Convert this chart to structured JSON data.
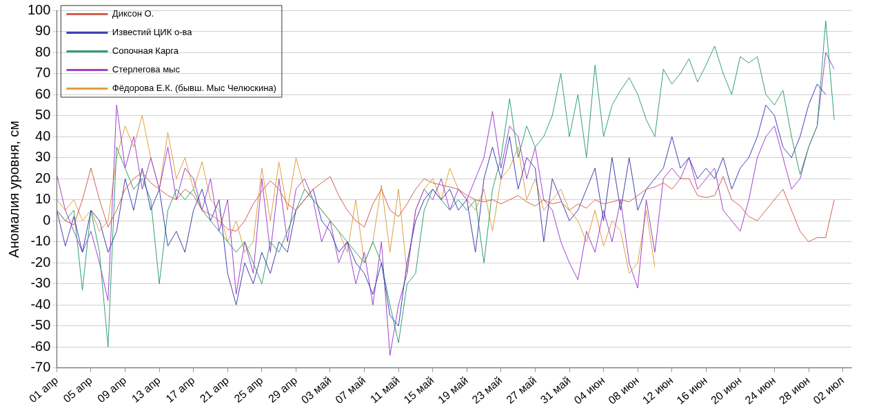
{
  "chart_data": {
    "type": "line",
    "ylabel": "Аномалия уровня, см",
    "x": [
      "--04-01",
      "--04-02",
      "--04-03",
      "--04-04",
      "--04-05",
      "--04-06",
      "--04-07",
      "--04-08",
      "--04-09",
      "--04-10",
      "--04-11",
      "--04-12",
      "--04-13",
      "--04-14",
      "--04-15",
      "--04-16",
      "--04-17",
      "--04-18",
      "--04-19",
      "--04-20",
      "--04-21",
      "--04-22",
      "--04-23",
      "--04-24",
      "--04-25",
      "--04-26",
      "--04-27",
      "--04-28",
      "--04-29",
      "--04-30",
      "--05-01",
      "--05-02",
      "--05-03",
      "--05-04",
      "--05-05",
      "--05-06",
      "--05-07",
      "--05-08",
      "--05-09",
      "--05-10",
      "--05-11",
      "--05-12",
      "--05-13",
      "--05-14",
      "--05-15",
      "--05-16",
      "--05-17",
      "--05-18",
      "--05-19",
      "--05-20",
      "--05-21",
      "--05-22",
      "--05-23",
      "--05-24",
      "--05-25",
      "--05-26",
      "--05-27",
      "--05-28",
      "--05-29",
      "--05-30",
      "--05-31",
      "--06-01",
      "--06-02",
      "--06-03",
      "--06-04",
      "--06-05",
      "--06-06",
      "--06-07",
      "--06-08",
      "--06-09",
      "--06-10",
      "--06-11",
      "--06-12",
      "--06-13",
      "--06-14",
      "--06-15",
      "--06-16",
      "--06-17",
      "--06-18",
      "--06-19",
      "--06-20",
      "--06-21",
      "--06-22",
      "--06-23",
      "--06-24",
      "--06-25",
      "--06-26",
      "--06-27",
      "--06-28",
      "--06-29",
      "--06-30",
      "--07-01"
    ],
    "series": [
      {
        "name": "Диксон О.",
        "color": "#d06050",
        "values": [
          5,
          0,
          -2,
          10,
          25,
          10,
          -3,
          5,
          15,
          20,
          23,
          18,
          15,
          12,
          10,
          15,
          12,
          5,
          3,
          0,
          -4,
          -5,
          0,
          8,
          14,
          19,
          15,
          8,
          5,
          10,
          15,
          18,
          21,
          12,
          5,
          0,
          -3,
          8,
          15,
          5,
          2,
          8,
          15,
          20,
          18,
          17,
          16,
          15,
          12,
          10,
          9,
          10,
          8,
          10,
          12,
          9,
          7,
          10,
          8,
          9,
          5,
          8,
          6,
          10,
          8,
          9,
          10,
          9,
          12,
          15,
          16,
          18,
          15,
          20,
          20,
          12,
          11,
          12,
          21,
          10,
          7,
          2,
          0,
          5,
          10,
          15,
          5,
          -5,
          -10,
          -8,
          -8,
          10
        ]
      },
      {
        "name": "Известий ЦИК о-ва",
        "color": "#4040b0",
        "values": [
          5,
          -12,
          2,
          -15,
          5,
          0,
          -15,
          -5,
          20,
          5,
          25,
          5,
          15,
          -12,
          -5,
          -15,
          5,
          15,
          0,
          10,
          -25,
          -40,
          -20,
          -30,
          -15,
          -25,
          -10,
          -15,
          5,
          10,
          15,
          0,
          -5,
          -15,
          -10,
          -20,
          -25,
          -35,
          -20,
          -45,
          -50,
          -20,
          0,
          10,
          15,
          10,
          15,
          5,
          10,
          -15,
          20,
          35,
          20,
          40,
          15,
          30,
          25,
          -10,
          20,
          10,
          0,
          5,
          15,
          25,
          0,
          30,
          5,
          30,
          5,
          15,
          20,
          25,
          40,
          25,
          30,
          20,
          25,
          20,
          30,
          15,
          25,
          30,
          40,
          55,
          50,
          35,
          30,
          40,
          55,
          65,
          60,
          null
        ]
      },
      {
        "name": "Сопочная Карга",
        "color": "#30a070",
        "values": [
          5,
          0,
          5,
          -33,
          5,
          -15,
          -60,
          35,
          25,
          15,
          20,
          10,
          -30,
          5,
          15,
          10,
          15,
          5,
          0,
          -5,
          -10,
          -15,
          -10,
          -20,
          -30,
          -10,
          -15,
          -5,
          5,
          15,
          10,
          5,
          0,
          -5,
          -10,
          -15,
          -20,
          -10,
          -20,
          -40,
          -58,
          -30,
          -25,
          5,
          15,
          10,
          5,
          10,
          5,
          10,
          -20,
          15,
          30,
          58,
          30,
          45,
          35,
          40,
          50,
          70,
          40,
          60,
          30,
          74,
          40,
          55,
          62,
          68,
          60,
          48,
          40,
          72,
          65,
          70,
          77,
          66,
          74,
          83,
          70,
          60,
          78,
          75,
          78,
          60,
          55,
          62,
          40,
          22,
          35,
          45,
          95,
          48
        ]
      },
      {
        "name": "Стерлегова мыс",
        "color": "#a040d0",
        "values": [
          22,
          5,
          -5,
          -15,
          -5,
          -20,
          -38,
          55,
          25,
          40,
          15,
          30,
          15,
          35,
          10,
          25,
          20,
          5,
          20,
          -5,
          10,
          -35,
          -10,
          -25,
          20,
          -15,
          20,
          -10,
          15,
          20,
          10,
          -10,
          0,
          -20,
          -10,
          -30,
          -15,
          -40,
          -10,
          -64,
          -40,
          -25,
          5,
          15,
          10,
          20,
          5,
          15,
          10,
          20,
          30,
          52,
          25,
          45,
          40,
          20,
          35,
          10,
          5,
          -10,
          -20,
          -28,
          -5,
          -15,
          5,
          -10,
          10,
          -20,
          -32,
          10,
          -15,
          20,
          25,
          20,
          30,
          15,
          20,
          25,
          5,
          0,
          -5,
          10,
          30,
          40,
          45,
          30,
          15,
          20,
          35,
          45,
          80,
          72
        ]
      },
      {
        "name": "Фёдорова Е.К. (бывш. Мыс Челюскина)",
        "color": "#e0a040",
        "values": [
          10,
          5,
          10,
          0,
          5,
          -5,
          0,
          30,
          45,
          35,
          50,
          30,
          15,
          42,
          20,
          30,
          15,
          28,
          10,
          5,
          -10,
          0,
          -15,
          -10,
          25,
          0,
          28,
          5,
          30,
          15,
          10,
          5,
          0,
          -5,
          -15,
          10,
          -20,
          -10,
          17,
          -15,
          15,
          -25,
          5,
          15,
          20,
          10,
          25,
          15,
          10,
          5,
          15,
          -5,
          20,
          25,
          35,
          10,
          20,
          5,
          10,
          15,
          5,
          0,
          -10,
          5,
          -12,
          0,
          -5,
          -25,
          -20,
          5,
          -22,
          null,
          null,
          null,
          null,
          null,
          null,
          null,
          null,
          null,
          null,
          null,
          null,
          null,
          null,
          null,
          null,
          null,
          null,
          null,
          null,
          null
        ]
      }
    ],
    "xlim": [
      "--04-01",
      "--07-03"
    ],
    "xticks": [
      {
        "value": "--04-01",
        "label": "01 апр"
      },
      {
        "value": "--04-05",
        "label": "05 апр"
      },
      {
        "value": "--04-09",
        "label": "09 апр"
      },
      {
        "value": "--04-13",
        "label": "13 апр"
      },
      {
        "value": "--04-17",
        "label": "17 апр"
      },
      {
        "value": "--04-21",
        "label": "21 апр"
      },
      {
        "value": "--04-25",
        "label": "25 апр"
      },
      {
        "value": "--04-29",
        "label": "29 апр"
      },
      {
        "value": "--05-03",
        "label": "03 май"
      },
      {
        "value": "--05-07",
        "label": "07 май"
      },
      {
        "value": "--05-11",
        "label": "11 май"
      },
      {
        "value": "--05-15",
        "label": "15 май"
      },
      {
        "value": "--05-19",
        "label": "19 май"
      },
      {
        "value": "--05-23",
        "label": "23 май"
      },
      {
        "value": "--05-27",
        "label": "27 май"
      },
      {
        "value": "--05-31",
        "label": "31 май"
      },
      {
        "value": "--06-04",
        "label": "04 июн"
      },
      {
        "value": "--06-08",
        "label": "08 июн"
      },
      {
        "value": "--06-12",
        "label": "12 июн"
      },
      {
        "value": "--06-16",
        "label": "16 июн"
      },
      {
        "value": "--06-20",
        "label": "20 июн"
      },
      {
        "value": "--06-24",
        "label": "24 июн"
      },
      {
        "value": "--06-28",
        "label": "28 июн"
      },
      {
        "value": "--07-02",
        "label": "02 июл"
      }
    ],
    "ylim": [
      -70,
      100
    ],
    "yticks": [
      -70,
      -60,
      -50,
      -40,
      -30,
      -20,
      -10,
      0,
      10,
      20,
      30,
      40,
      50,
      60,
      70,
      80,
      90,
      100
    ],
    "grid": "y",
    "legend": "top left",
    "marker": "none",
    "line_style": "solid"
  }
}
